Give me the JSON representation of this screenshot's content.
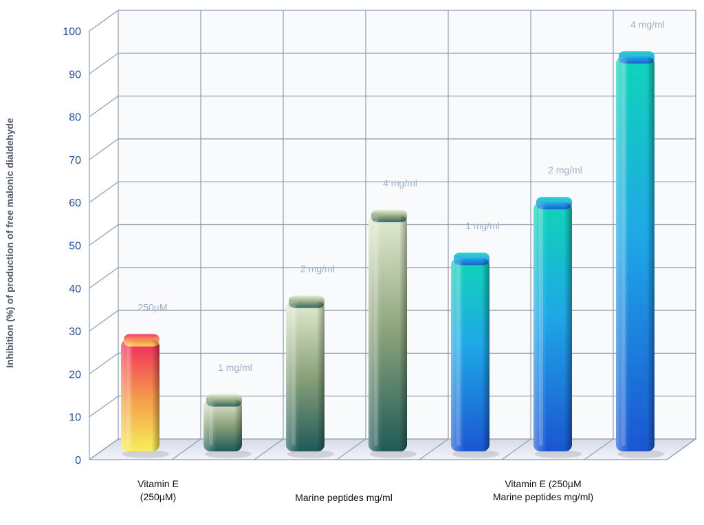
{
  "chart_data": {
    "type": "bar",
    "title": "",
    "ylabel": "Inhibition (%) of production of free malonic dialdehyde",
    "ylim": [
      0,
      100
    ],
    "yticks": [
      "0",
      "10",
      "20",
      "30",
      "40",
      "50",
      "60",
      "70",
      "80",
      "90",
      "100"
    ],
    "grid": true,
    "bars": [
      {
        "group": "Vitamin E (250µM)",
        "label": "250µM",
        "value": 28,
        "palette": "warm"
      },
      {
        "group": "Marine peptides  mg/ml",
        "label": "1 mg/ml",
        "value": 14,
        "palette": "olive"
      },
      {
        "group": "Marine peptides  mg/ml",
        "label": "2 mg/ml",
        "value": 37,
        "palette": "olive"
      },
      {
        "group": "Marine peptides  mg/ml",
        "label": "4 mg/ml",
        "value": 57,
        "palette": "olive"
      },
      {
        "group": "Vitamin E (250µM Marine peptides mg/ml)",
        "label": "1 mg/ml",
        "value": 47,
        "palette": "blue"
      },
      {
        "group": "Vitamin E (250µM Marine peptides mg/ml)",
        "label": "2 mg/ml",
        "value": 60,
        "palette": "blue"
      },
      {
        "group": "Vitamin E (250µM Marine peptides mg/ml)",
        "label": "4 mg/ml",
        "value": 94,
        "palette": "blue"
      }
    ],
    "category_labels": [
      {
        "line1": "Vitamin E",
        "line2": "(250µM)"
      },
      {
        "line1": "Marine peptides  mg/ml",
        "line2": ""
      },
      {
        "line1": "Vitamin E (250µM",
        "line2": "Marine peptides mg/ml)"
      }
    ],
    "colors": {
      "grid": "#8e9bb0",
      "tick_text": "#1f4e9a",
      "bar_label": "#9fb0c8",
      "warm_top": "#f0285a",
      "warm_bottom": "#f7ee5a",
      "olive_top": "#e4ecd2",
      "olive_bottom": "#1f5a58",
      "blue_top": "#10d4b8",
      "blue_mid": "#1ea8e6",
      "blue_bottom": "#1a56d2"
    }
  }
}
